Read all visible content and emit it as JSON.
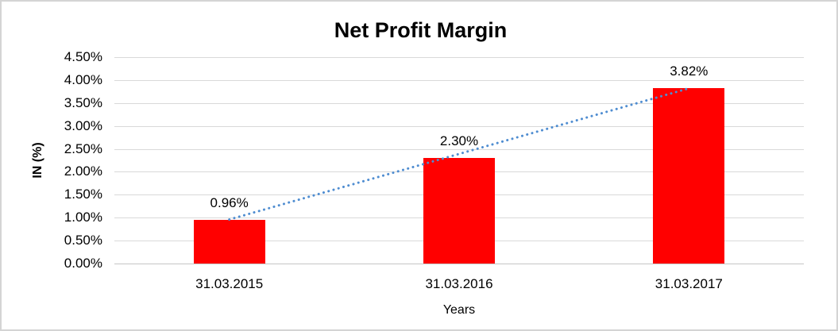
{
  "window": {
    "background_color": "#ffffff",
    "border_color": "#d4d4d4"
  },
  "chart_data": {
    "type": "bar",
    "title": "Net Profit Margin",
    "xlabel": "Years",
    "ylabel": "IN (%)",
    "categories": [
      "31.03.2015",
      "31.03.2016",
      "31.03.2017"
    ],
    "values": [
      0.96,
      2.3,
      3.82
    ],
    "data_labels": [
      "0.96%",
      "2.30%",
      "3.82%"
    ],
    "ylim": [
      0,
      4.5
    ],
    "ytick_step": 0.5,
    "yticks": [
      "0.00%",
      "0.50%",
      "1.00%",
      "1.50%",
      "2.00%",
      "2.50%",
      "3.00%",
      "3.50%",
      "4.00%",
      "4.50%"
    ],
    "grid": true,
    "legend": "none",
    "bar_color": "#ff0000",
    "gridline_color": "#d9d9d9",
    "text_color": "#000000",
    "trendline": {
      "type": "linear",
      "style": "dotted",
      "color": "#4f8dd1",
      "start_value": 0.96,
      "end_value": 3.82
    }
  }
}
